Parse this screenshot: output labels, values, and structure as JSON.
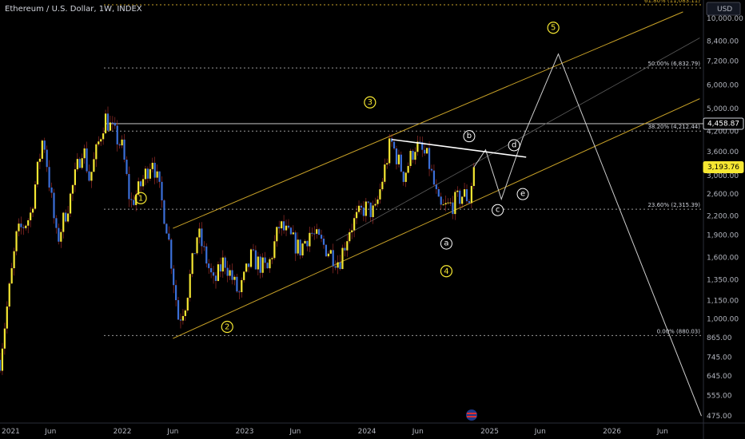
{
  "header": {
    "title": "Ethereum / U.S. Dollar, 1W, INDEX"
  },
  "colors": {
    "up": "#f5e732",
    "down": "#3b6fd8",
    "channel": "#c9a227",
    "wave": "#f5e732",
    "path": "#cfcfcf",
    "fib": "#9a9a9a",
    "bg": "#000000"
  },
  "chart_data": {
    "type": "candlestick",
    "currency": "USD",
    "y_scale": "log",
    "ylim": [
      450,
      11500
    ],
    "xlim": [
      "2021-01-01",
      "2026-10-01"
    ],
    "y_ticks": [
      "475.00",
      "555.00",
      "645.00",
      "745.00",
      "865.00",
      "1,000.00",
      "1,150.00",
      "1,350.00",
      "1,600.00",
      "1,900.00",
      "2,200.00",
      "2,600.00",
      "3,000.00",
      "3,600.00",
      "4,200.00",
      "5,000.00",
      "6,000.00",
      "7,200.00",
      "8,400.00",
      "10,000.00"
    ],
    "y_tick_values": [
      475,
      555,
      645,
      745,
      865,
      1000,
      1150,
      1350,
      1600,
      1900,
      2200,
      2600,
      3000,
      3600,
      4200,
      5000,
      6000,
      7200,
      8400,
      10000
    ],
    "x_ticks": [
      {
        "label": "2021",
        "date": "2021-01-01"
      },
      {
        "label": "Jun",
        "date": "2021-06-01"
      },
      {
        "label": "2022",
        "date": "2022-01-01"
      },
      {
        "label": "Jun",
        "date": "2022-06-01"
      },
      {
        "label": "2023",
        "date": "2023-01-01"
      },
      {
        "label": "Jun",
        "date": "2023-06-01"
      },
      {
        "label": "2024",
        "date": "2024-01-01"
      },
      {
        "label": "Jun",
        "date": "2024-06-01"
      },
      {
        "label": "2025",
        "date": "2025-01-01"
      },
      {
        "label": "Jun",
        "date": "2025-06-01"
      },
      {
        "label": "2026",
        "date": "2026-01-01"
      },
      {
        "label": "Jun",
        "date": "2026-06-01"
      }
    ],
    "price_markers": [
      {
        "label": "4,458.87",
        "value": 4458.87,
        "style": "white"
      },
      {
        "label": "3,193.76",
        "value": 3193.76,
        "style": "yellow"
      }
    ],
    "fib_levels": [
      {
        "label": "61.80% (11,083.11)",
        "value": 11083.11,
        "highlight": true
      },
      {
        "label": "50.00% (6,832.79)",
        "value": 6832.79,
        "highlight": false
      },
      {
        "label": "38.20% (4,212.44)",
        "value": 4212.44,
        "highlight": false
      },
      {
        "label": "23.60% (2,315.39)",
        "value": 2315.39,
        "highlight": false
      },
      {
        "label": "0.00% (880.03)",
        "value": 880.03,
        "highlight": false
      }
    ],
    "price_path": [
      {
        "date": "2021-01-01",
        "value": 730
      },
      {
        "date": "2021-02-20",
        "value": 1900
      },
      {
        "date": "2021-04-01",
        "value": 2200
      },
      {
        "date": "2021-05-10",
        "value": 4100
      },
      {
        "date": "2021-06-20",
        "value": 1800
      },
      {
        "date": "2021-08-01",
        "value": 2600
      },
      {
        "date": "2021-09-05",
        "value": 3800
      },
      {
        "date": "2021-09-25",
        "value": 2900
      },
      {
        "date": "2021-11-10",
        "value": 4700
      },
      {
        "date": "2022-01-01",
        "value": 3700
      },
      {
        "date": "2022-01-25",
        "value": 2400
      },
      {
        "date": "2022-02-20",
        "value": 2700
      },
      {
        "date": "2022-04-01",
        "value": 3450
      },
      {
        "date": "2022-05-15",
        "value": 2000
      },
      {
        "date": "2022-06-18",
        "value": 990
      },
      {
        "date": "2022-07-10",
        "value": 1150
      },
      {
        "date": "2022-08-14",
        "value": 1950
      },
      {
        "date": "2022-10-01",
        "value": 1300
      },
      {
        "date": "2022-11-01",
        "value": 1580
      },
      {
        "date": "2022-12-15",
        "value": 1200
      },
      {
        "date": "2023-01-20",
        "value": 1600
      },
      {
        "date": "2023-03-10",
        "value": 1450
      },
      {
        "date": "2023-04-15",
        "value": 2050
      },
      {
        "date": "2023-06-15",
        "value": 1700
      },
      {
        "date": "2023-07-15",
        "value": 1950
      },
      {
        "date": "2023-10-10",
        "value": 1550
      },
      {
        "date": "2023-11-10",
        "value": 2000
      },
      {
        "date": "2023-12-25",
        "value": 2350
      },
      {
        "date": "2024-01-25",
        "value": 2250
      },
      {
        "date": "2024-03-12",
        "value": 3900
      },
      {
        "date": "2024-04-20",
        "value": 3000
      },
      {
        "date": "2024-05-25",
        "value": 3800
      },
      {
        "date": "2024-07-01",
        "value": 3400
      },
      {
        "date": "2024-08-05",
        "value": 2300
      },
      {
        "date": "2024-09-10",
        "value": 2400
      },
      {
        "date": "2024-10-15",
        "value": 2600
      },
      {
        "date": "2024-11-01",
        "value": 2500
      },
      {
        "date": "2024-11-15",
        "value": 3193.76
      }
    ],
    "projection": [
      {
        "date": "2024-11-15",
        "value": 3193.76
      },
      {
        "date": "2024-12-20",
        "value": 3650
      },
      {
        "date": "2025-02-05",
        "value": 2500
      },
      {
        "date": "2025-04-10",
        "value": 4000
      },
      {
        "date": "2025-07-25",
        "value": 7600
      },
      {
        "date": "2026-09-25",
        "value": 475
      }
    ],
    "channel_upper": [
      {
        "date": "2022-06-01",
        "value": 2000
      },
      {
        "date": "2026-08-01",
        "value": 10500
      }
    ],
    "channel_lower": [
      {
        "date": "2022-06-01",
        "value": 860
      },
      {
        "date": "2026-09-20",
        "value": 5400
      }
    ],
    "channel_mid": [
      {
        "date": "2023-10-01",
        "value": 1820
      },
      {
        "date": "2026-09-20",
        "value": 8600
      }
    ],
    "triangle_line": [
      {
        "date": "2024-03-15",
        "value": 3950
      },
      {
        "date": "2025-04-20",
        "value": 3450
      }
    ],
    "resistance": [
      {
        "date": "2021-11-10",
        "value": 4458.87
      },
      {
        "date": "2026-10-01",
        "value": 4458.87
      }
    ],
    "wave_labels": [
      {
        "label": "1",
        "date": "2022-02-25",
        "value": 2520
      },
      {
        "label": "2",
        "date": "2022-11-10",
        "value": 940
      },
      {
        "label": "3",
        "date": "2024-01-10",
        "value": 5250
      },
      {
        "label": "4",
        "date": "2024-08-25",
        "value": 1440
      },
      {
        "label": "5",
        "date": "2025-07-10",
        "value": 9300
      }
    ],
    "sub_wave_labels": [
      {
        "label": "a",
        "date": "2024-08-25",
        "value": 1780
      },
      {
        "label": "b",
        "date": "2024-11-01",
        "value": 4050
      },
      {
        "label": "c",
        "date": "2025-01-25",
        "value": 2300
      },
      {
        "label": "d",
        "date": "2025-03-15",
        "value": 3780
      },
      {
        "label": "e",
        "date": "2025-04-10",
        "value": 2600
      }
    ]
  }
}
